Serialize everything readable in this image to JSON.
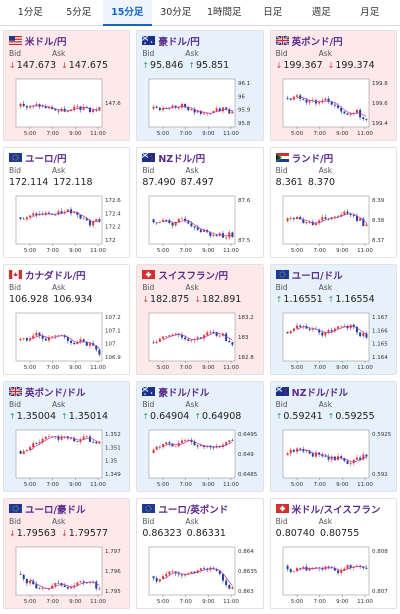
{
  "tabs": [
    {
      "label": "1分足",
      "active": false
    },
    {
      "label": "5分足",
      "active": false
    },
    {
      "label": "15分足",
      "active": true
    },
    {
      "label": "30分足",
      "active": false
    },
    {
      "label": "1時間足",
      "active": false
    },
    {
      "label": "日足",
      "active": false
    },
    {
      "label": "週足",
      "active": false
    },
    {
      "label": "月足",
      "active": false
    }
  ],
  "labels": {
    "bid": "Bid",
    "ask": "Ask"
  },
  "cards": [
    {
      "title": "米ドル/円",
      "flag": "us",
      "trend": "down",
      "bid": "147.673",
      "ask": "147.675",
      "chart_data": {
        "type": "candlestick",
        "x_ticks": [
          "5:00",
          "7:00",
          "9:00",
          "11:00"
        ],
        "y_ticks": [
          "147.6"
        ]
      }
    },
    {
      "title": "豪ドル/円",
      "flag": "au",
      "trend": "up",
      "bid": "95.846",
      "ask": "95.851",
      "chart_data": {
        "type": "candlestick",
        "x_ticks": [
          "5:00",
          "7:00",
          "9:00",
          "11:00"
        ],
        "y_ticks": [
          "96.1",
          "96",
          "95.9",
          "95.8"
        ]
      }
    },
    {
      "title": "英ポンド/円",
      "flag": "uk",
      "trend": "down",
      "bid": "199.367",
      "ask": "199.374",
      "chart_data": {
        "type": "candlestick",
        "x_ticks": [
          "5:00",
          "7:00",
          "9:00",
          "11:00"
        ],
        "y_ticks": [
          "199.8",
          "199.6",
          "199.4"
        ]
      }
    },
    {
      "title": "ユーロ/円",
      "flag": "eu",
      "trend": "flat",
      "bid": "172.114",
      "ask": "172.118",
      "chart_data": {
        "type": "candlestick",
        "x_ticks": [
          "5:00",
          "7:00",
          "9:00",
          "11:00"
        ],
        "y_ticks": [
          "172.6",
          "172.4",
          "172.2",
          "172"
        ]
      }
    },
    {
      "title": "NZドル/円",
      "flag": "nz",
      "trend": "flat",
      "bid": "87.490",
      "ask": "87.497",
      "chart_data": {
        "type": "candlestick",
        "x_ticks": [
          "5:00",
          "7:00",
          "9:00",
          "11:00"
        ],
        "y_ticks": [
          "87.6",
          "87.5"
        ]
      }
    },
    {
      "title": "ランド/円",
      "flag": "za",
      "trend": "flat",
      "bid": "8.361",
      "ask": "8.370",
      "chart_data": {
        "type": "candlestick",
        "x_ticks": [
          "5:00",
          "7:00",
          "9:00",
          "11:00"
        ],
        "y_ticks": [
          "8.39",
          "8.38",
          "8.37"
        ]
      }
    },
    {
      "title": "カナダドル/円",
      "flag": "ca",
      "trend": "flat",
      "bid": "106.928",
      "ask": "106.934",
      "chart_data": {
        "type": "candlestick",
        "x_ticks": [
          "5:00",
          "7:00",
          "9:00",
          "11:00"
        ],
        "y_ticks": [
          "107.2",
          "107.1",
          "107",
          "106.9"
        ]
      }
    },
    {
      "title": "スイスフラン/円",
      "flag": "ch",
      "trend": "down",
      "bid": "182.875",
      "ask": "182.891",
      "chart_data": {
        "type": "candlestick",
        "x_ticks": [
          "5:00",
          "7:00",
          "9:00",
          "11:00"
        ],
        "y_ticks": [
          "183.2",
          "183",
          "182.8"
        ]
      }
    },
    {
      "title": "ユーロ/ドル",
      "flag": "eu",
      "trend": "up",
      "bid": "1.16551",
      "ask": "1.16554",
      "chart_data": {
        "type": "candlestick",
        "x_ticks": [
          "5:00",
          "7:00",
          "9:00",
          "11:00"
        ],
        "y_ticks": [
          "1.167",
          "1.166",
          "1.165",
          "1.164"
        ]
      }
    },
    {
      "title": "英ポンド/ドル",
      "flag": "uk",
      "trend": "up",
      "bid": "1.35004",
      "ask": "1.35014",
      "chart_data": {
        "type": "candlestick",
        "x_ticks": [
          "5:00",
          "7:00",
          "9:00",
          "11:00"
        ],
        "y_ticks": [
          "1.352",
          "1.351",
          "1.35",
          "1.349"
        ]
      }
    },
    {
      "title": "豪ドル/ドル",
      "flag": "au",
      "trend": "up",
      "bid": "0.64904",
      "ask": "0.64908",
      "chart_data": {
        "type": "candlestick",
        "x_ticks": [
          "5:00",
          "7:00",
          "9:00",
          "11:00"
        ],
        "y_ticks": [
          "0.6495",
          "0.649",
          "0.6485"
        ]
      }
    },
    {
      "title": "NZドル/ドル",
      "flag": "nz",
      "trend": "up",
      "bid": "0.59241",
      "ask": "0.59255",
      "chart_data": {
        "type": "candlestick",
        "x_ticks": [
          "5:00",
          "7:00",
          "9:00",
          "11:00"
        ],
        "y_ticks": [
          "0.5925",
          "0.592"
        ]
      }
    },
    {
      "title": "ユーロ/豪ドル",
      "flag": "eu",
      "trend": "down",
      "bid": "1.79563",
      "ask": "1.79577",
      "chart_data": {
        "type": "candlestick",
        "x_ticks": [
          "5:00",
          "7:00",
          "9:00",
          "11:00"
        ],
        "y_ticks": [
          "1.797",
          "1.796",
          "1.795"
        ]
      }
    },
    {
      "title": "ユーロ/英ポンド",
      "flag": "eu",
      "trend": "flat",
      "bid": "0.86323",
      "ask": "0.86331",
      "chart_data": {
        "type": "candlestick",
        "x_ticks": [
          "5:00",
          "7:00",
          "9:00",
          "11:00"
        ],
        "y_ticks": [
          "0.864",
          "0.8635",
          "0.863"
        ]
      }
    },
    {
      "title": "米ドル/スイスフラン",
      "flag": "ch",
      "trend": "flat",
      "bid": "0.80740",
      "ask": "0.80755",
      "chart_data": {
        "type": "candlestick",
        "x_ticks": [
          "5:00",
          "7:00",
          "9:00",
          "11:00"
        ],
        "y_ticks": [
          "0.808",
          "0.807"
        ]
      }
    }
  ],
  "colors": {
    "active_tab": "#1565c0",
    "title": "#5a2a8c",
    "down_bg": "#fde9ea",
    "up_bg": "#e6f1fb",
    "bull_candle": "#e53935",
    "bear_candle": "#1e3f9e",
    "ma_line": "#b03ab5",
    "down_arrow": "#e53935",
    "up_arrow": "#2e9e6b"
  }
}
